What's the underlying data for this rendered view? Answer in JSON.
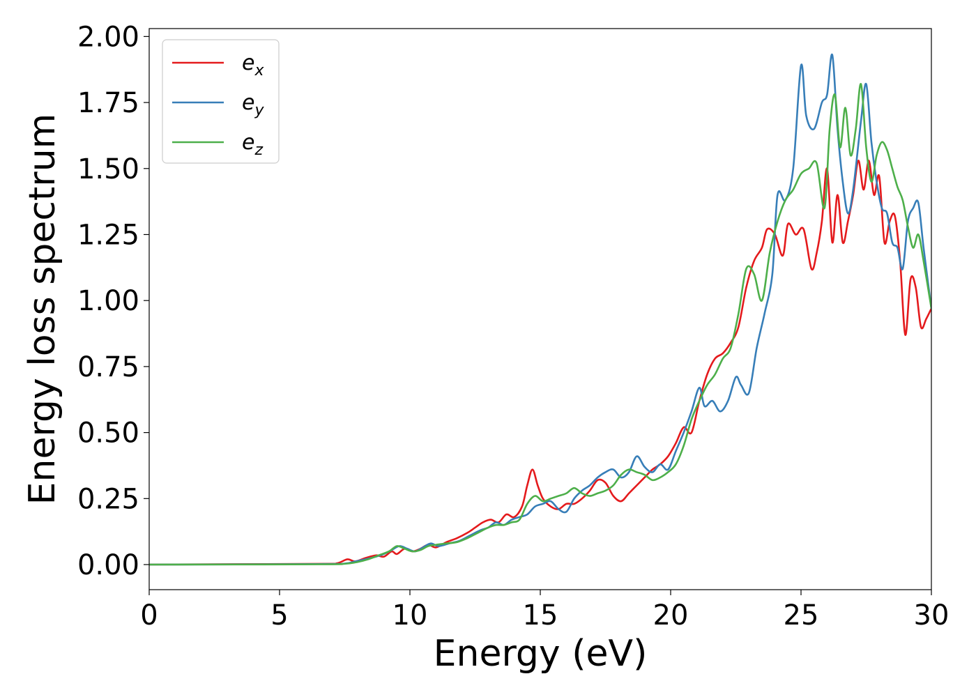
{
  "chart_data": {
    "type": "line",
    "title": "",
    "xlabel": "Energy (eV)",
    "ylabel": "Energy loss spectrum",
    "xlim": [
      0,
      30
    ],
    "ylim": [
      -0.095,
      2.03
    ],
    "xticks": [
      0,
      5,
      10,
      15,
      20,
      25,
      30
    ],
    "xtick_labels": [
      "0",
      "5",
      "10",
      "15",
      "20",
      "25",
      "30"
    ],
    "yticks": [
      0,
      0.25,
      0.5,
      0.75,
      1.0,
      1.25,
      1.5,
      1.75,
      2.0
    ],
    "ytick_labels": [
      "0.00",
      "0.25",
      "0.50",
      "0.75",
      "1.00",
      "1.25",
      "1.50",
      "1.75",
      "2.00"
    ],
    "grid": false,
    "legend_position": "top-left",
    "series": [
      {
        "name": "e",
        "subscript": "x",
        "color": "#e41a1c",
        "x": [
          0,
          6.5,
          7.2,
          7.6,
          7.9,
          8.3,
          8.7,
          9.0,
          9.3,
          9.5,
          9.8,
          10.1,
          10.4,
          10.7,
          11.0,
          11.4,
          11.8,
          12.2,
          12.5,
          12.8,
          13.1,
          13.4,
          13.7,
          14.0,
          14.3,
          14.5,
          14.7,
          14.9,
          15.1,
          15.4,
          15.7,
          16.0,
          16.3,
          16.6,
          16.9,
          17.2,
          17.5,
          17.8,
          18.1,
          18.4,
          18.7,
          19.0,
          19.3,
          19.6,
          19.9,
          20.2,
          20.5,
          20.8,
          21.1,
          21.4,
          21.7,
          22.0,
          22.3,
          22.6,
          22.9,
          23.2,
          23.5,
          23.7,
          24.0,
          24.3,
          24.5,
          24.8,
          25.1,
          25.4,
          25.6,
          25.8,
          26.0,
          26.2,
          26.4,
          26.6,
          26.8,
          27.0,
          27.2,
          27.4,
          27.6,
          27.8,
          28.0,
          28.2,
          28.4,
          28.6,
          28.8,
          29.0,
          29.2,
          29.4,
          29.6,
          29.8,
          30.0
        ],
        "y": [
          0,
          0.003,
          0.005,
          0.02,
          0.012,
          0.025,
          0.035,
          0.03,
          0.05,
          0.04,
          0.06,
          0.05,
          0.06,
          0.075,
          0.065,
          0.085,
          0.1,
          0.12,
          0.14,
          0.16,
          0.17,
          0.16,
          0.19,
          0.18,
          0.22,
          0.3,
          0.36,
          0.3,
          0.25,
          0.22,
          0.21,
          0.23,
          0.23,
          0.25,
          0.28,
          0.32,
          0.31,
          0.26,
          0.24,
          0.27,
          0.3,
          0.33,
          0.36,
          0.38,
          0.41,
          0.46,
          0.52,
          0.5,
          0.62,
          0.72,
          0.78,
          0.8,
          0.84,
          0.9,
          1.05,
          1.15,
          1.2,
          1.27,
          1.25,
          1.17,
          1.29,
          1.25,
          1.27,
          1.12,
          1.18,
          1.3,
          1.5,
          1.22,
          1.4,
          1.22,
          1.3,
          1.4,
          1.53,
          1.42,
          1.53,
          1.4,
          1.47,
          1.22,
          1.3,
          1.32,
          1.15,
          0.87,
          1.08,
          1.05,
          0.9,
          0.93,
          0.97
        ]
      },
      {
        "name": "e",
        "subscript": "y",
        "color": "#377eb8",
        "x": [
          0,
          6.5,
          7.5,
          7.9,
          8.3,
          8.7,
          9.0,
          9.3,
          9.6,
          9.9,
          10.2,
          10.5,
          10.8,
          11.1,
          11.5,
          11.9,
          12.3,
          12.7,
          13.0,
          13.3,
          13.6,
          13.9,
          14.2,
          14.5,
          14.8,
          15.1,
          15.4,
          15.7,
          16.0,
          16.3,
          16.6,
          16.9,
          17.2,
          17.5,
          17.8,
          18.1,
          18.4,
          18.7,
          19.0,
          19.3,
          19.6,
          19.9,
          20.2,
          20.5,
          20.8,
          21.1,
          21.3,
          21.6,
          21.9,
          22.2,
          22.5,
          22.7,
          23.0,
          23.3,
          23.6,
          23.9,
          24.1,
          24.4,
          24.7,
          25.0,
          25.2,
          25.5,
          25.8,
          26.0,
          26.2,
          26.4,
          26.6,
          26.8,
          27.0,
          27.3,
          27.5,
          27.7,
          27.9,
          28.1,
          28.3,
          28.5,
          28.7,
          28.9,
          29.1,
          29.3,
          29.5,
          29.7,
          30.0
        ],
        "y": [
          0,
          0.002,
          0.004,
          0.012,
          0.02,
          0.03,
          0.04,
          0.055,
          0.07,
          0.06,
          0.05,
          0.065,
          0.08,
          0.07,
          0.08,
          0.09,
          0.11,
          0.13,
          0.14,
          0.16,
          0.15,
          0.17,
          0.18,
          0.19,
          0.22,
          0.23,
          0.24,
          0.21,
          0.2,
          0.25,
          0.28,
          0.3,
          0.33,
          0.35,
          0.36,
          0.33,
          0.35,
          0.41,
          0.37,
          0.35,
          0.38,
          0.36,
          0.43,
          0.5,
          0.58,
          0.67,
          0.6,
          0.62,
          0.58,
          0.62,
          0.71,
          0.68,
          0.65,
          0.82,
          0.95,
          1.1,
          1.4,
          1.38,
          1.5,
          1.89,
          1.7,
          1.65,
          1.75,
          1.78,
          1.93,
          1.65,
          1.45,
          1.33,
          1.42,
          1.68,
          1.82,
          1.6,
          1.45,
          1.35,
          1.33,
          1.22,
          1.2,
          1.12,
          1.3,
          1.35,
          1.37,
          1.2,
          0.97
        ]
      },
      {
        "name": "e",
        "subscript": "z",
        "color": "#4daf4a",
        "x": [
          0,
          6.5,
          7.5,
          8.0,
          8.4,
          8.8,
          9.2,
          9.5,
          9.8,
          10.1,
          10.4,
          10.7,
          11.0,
          11.4,
          11.8,
          12.2,
          12.6,
          13.0,
          13.3,
          13.6,
          13.9,
          14.2,
          14.5,
          14.8,
          15.1,
          15.4,
          15.7,
          16.0,
          16.3,
          16.6,
          16.9,
          17.2,
          17.5,
          17.8,
          18.1,
          18.4,
          18.7,
          19.0,
          19.3,
          19.6,
          19.9,
          20.2,
          20.5,
          20.8,
          21.1,
          21.4,
          21.7,
          22.0,
          22.3,
          22.6,
          22.9,
          23.2,
          23.5,
          23.8,
          24.1,
          24.4,
          24.7,
          25.0,
          25.3,
          25.6,
          25.9,
          26.1,
          26.3,
          26.5,
          26.7,
          26.9,
          27.1,
          27.3,
          27.5,
          27.7,
          27.9,
          28.1,
          28.3,
          28.5,
          28.7,
          28.9,
          29.1,
          29.3,
          29.5,
          29.7,
          30.0
        ],
        "y": [
          0,
          0.001,
          0.003,
          0.01,
          0.02,
          0.035,
          0.05,
          0.07,
          0.06,
          0.05,
          0.055,
          0.07,
          0.075,
          0.08,
          0.085,
          0.1,
          0.12,
          0.14,
          0.15,
          0.15,
          0.16,
          0.17,
          0.23,
          0.26,
          0.24,
          0.25,
          0.26,
          0.27,
          0.29,
          0.27,
          0.26,
          0.27,
          0.28,
          0.3,
          0.34,
          0.36,
          0.35,
          0.34,
          0.32,
          0.33,
          0.35,
          0.38,
          0.45,
          0.55,
          0.62,
          0.68,
          0.72,
          0.78,
          0.82,
          0.95,
          1.12,
          1.1,
          1.0,
          1.18,
          1.3,
          1.38,
          1.42,
          1.48,
          1.5,
          1.52,
          1.35,
          1.65,
          1.78,
          1.58,
          1.73,
          1.55,
          1.65,
          1.82,
          1.58,
          1.45,
          1.55,
          1.6,
          1.57,
          1.5,
          1.43,
          1.38,
          1.28,
          1.2,
          1.25,
          1.15,
          0.97
        ]
      }
    ]
  }
}
